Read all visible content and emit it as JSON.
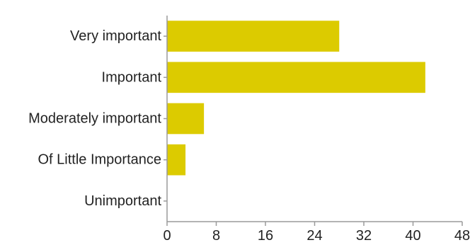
{
  "chart_data": {
    "type": "bar",
    "orientation": "horizontal",
    "categories": [
      "Very important",
      "Important",
      "Moderately important",
      "Of Little Importance",
      "Unimportant"
    ],
    "values": [
      28,
      42,
      6,
      3,
      0
    ],
    "xlim": [
      0,
      48
    ],
    "xticks": [
      "0",
      "8",
      "16",
      "24",
      "32",
      "40",
      "48"
    ],
    "grid": false,
    "bar_color": "#dccb00"
  }
}
